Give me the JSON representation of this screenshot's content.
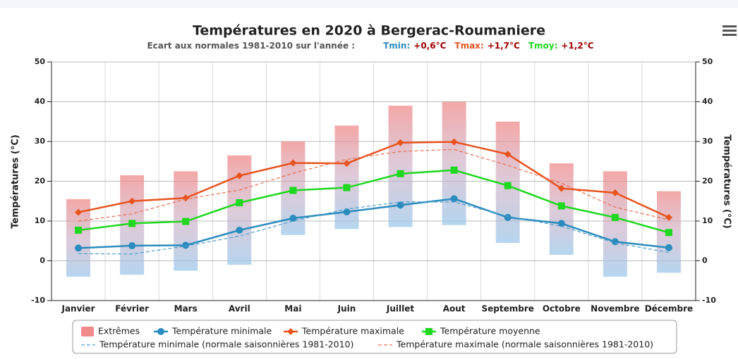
{
  "chart_data": {
    "type": "line",
    "title": "Températures en 2020 à Bergerac-Roumaniere",
    "subtitle": {
      "text": "Ecart aux normales 1981-2010 sur l'année :",
      "tmin_label": "Tmin:",
      "tmin_value": "+0,6°C",
      "tmax_label": "Tmax:",
      "tmax_value": "+1,7°C",
      "tmoy_label": "Tmoy:",
      "tmoy_value": "+1,2°C"
    },
    "ylabel": "Températures (°C)",
    "y2label": "Températures (°C)",
    "categories": [
      "Janvier",
      "Février",
      "Mars",
      "Avril",
      "Mai",
      "Juin",
      "Juillet",
      "Aout",
      "Septembre",
      "Octobre",
      "Novembre",
      "Décembre"
    ],
    "ylim": [
      -10,
      50
    ],
    "yticks": [
      -10,
      0,
      10,
      20,
      30,
      40,
      50
    ],
    "y2lim": [
      -10,
      50
    ],
    "y2ticks": [
      -10,
      0,
      10,
      20,
      30,
      40,
      50
    ],
    "grid": true,
    "legend": "bottom",
    "series": [
      {
        "name": "Extrêmes",
        "type": "range",
        "color": "#f08a8a",
        "low": [
          -4,
          -3.5,
          -2.5,
          -1,
          6.5,
          8,
          8.5,
          9,
          4.5,
          1.5,
          -4,
          -3
        ],
        "high": [
          15.5,
          21.5,
          22.5,
          26.5,
          30,
          34,
          39,
          40,
          35,
          24.5,
          22.5,
          17.5
        ]
      },
      {
        "name": "Température minimale",
        "type": "line",
        "marker": "circle",
        "color": "#2b8cbe",
        "values": [
          3.2,
          3.8,
          3.9,
          7.7,
          10.7,
          12.3,
          14.0,
          15.6,
          10.9,
          9.4,
          4.8,
          3.3
        ]
      },
      {
        "name": "Température maximale",
        "type": "line",
        "marker": "diamond",
        "color": "#e8531e",
        "values": [
          12.2,
          15.0,
          15.8,
          21.4,
          24.6,
          24.5,
          29.7,
          29.9,
          26.8,
          18.2,
          17.1,
          10.9
        ]
      },
      {
        "name": "Température moyenne",
        "type": "line",
        "marker": "square",
        "color": "#1fd81f",
        "values": [
          7.7,
          9.4,
          9.9,
          14.6,
          17.7,
          18.4,
          21.9,
          22.8,
          18.9,
          13.8,
          10.9,
          7.1
        ]
      },
      {
        "name": "Température minimale (normale saisonnières 1981-2010)",
        "type": "line",
        "dashed": true,
        "color": "#4a9fd0",
        "values": [
          1.8,
          1.7,
          3.7,
          6.2,
          10,
          13,
          14.8,
          14.8,
          11.2,
          8.7,
          4.5,
          2.1
        ]
      },
      {
        "name": "Température maximale (normale saisonnières 1981-2010)",
        "type": "line",
        "dashed": true,
        "color": "#e87050",
        "values": [
          10,
          11.8,
          15.5,
          17.8,
          22,
          25.5,
          27.5,
          28,
          24,
          19.5,
          13.5,
          10.3
        ]
      }
    ]
  }
}
